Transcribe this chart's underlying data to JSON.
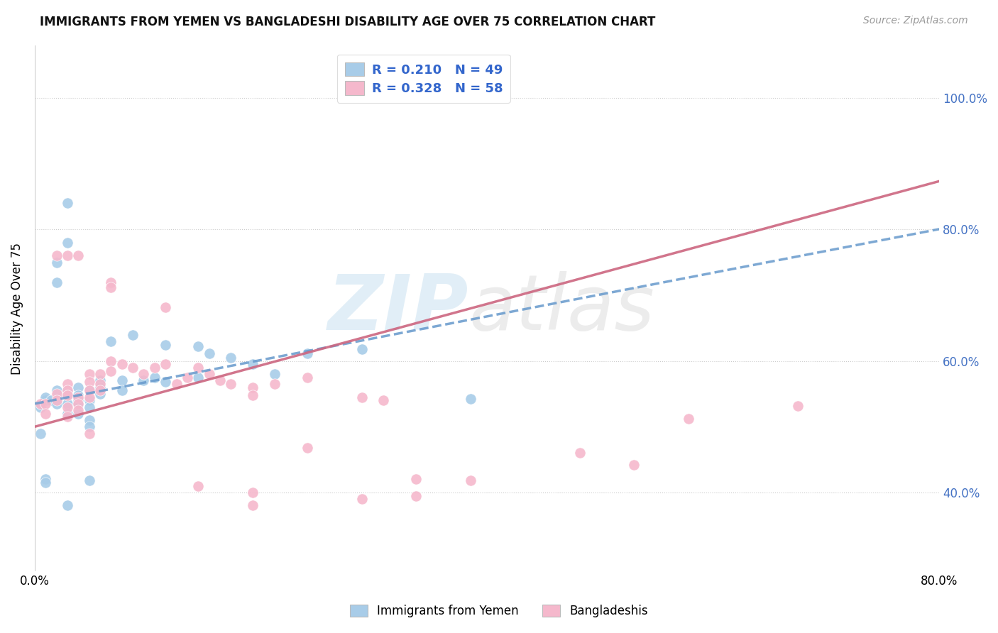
{
  "title": "IMMIGRANTS FROM YEMEN VS BANGLADESHI DISABILITY AGE OVER 75 CORRELATION CHART",
  "source": "Source: ZipAtlas.com",
  "ylabel": "Disability Age Over 75",
  "legend_label1": "Immigrants from Yemen",
  "legend_label2": "Bangladeshis",
  "r1": "0.210",
  "n1": "49",
  "r2": "0.328",
  "n2": "58",
  "blue_scatter_color": "#a8cce8",
  "pink_scatter_color": "#f5b8cc",
  "blue_line_color": "#6699cc",
  "pink_line_color": "#cc6680",
  "xlim": [
    0.0,
    0.083
  ],
  "ylim": [
    0.28,
    1.08
  ],
  "ytick_positions": [
    0.4,
    0.6,
    0.8,
    1.0
  ],
  "ytick_labels_right": [
    "40.0%",
    "60.0%",
    "80.0%",
    "100.0%"
  ],
  "blue_x": [
    0.0005,
    0.0005,
    0.001,
    0.001,
    0.001,
    0.0015,
    0.002,
    0.002,
    0.002,
    0.003,
    0.003,
    0.003,
    0.003,
    0.003,
    0.004,
    0.004,
    0.004,
    0.004,
    0.004,
    0.005,
    0.005,
    0.005,
    0.005,
    0.005,
    0.006,
    0.006,
    0.006,
    0.007,
    0.008,
    0.008,
    0.009,
    0.01,
    0.011,
    0.012,
    0.012,
    0.015,
    0.015,
    0.016,
    0.018,
    0.02,
    0.022,
    0.025,
    0.03,
    0.04,
    0.002,
    0.003,
    0.003,
    0.001,
    0.005
  ],
  "blue_y": [
    0.53,
    0.49,
    0.54,
    0.545,
    0.42,
    0.54,
    0.555,
    0.535,
    0.72,
    0.555,
    0.548,
    0.535,
    0.52,
    0.78,
    0.56,
    0.548,
    0.54,
    0.535,
    0.52,
    0.555,
    0.54,
    0.53,
    0.51,
    0.5,
    0.57,
    0.56,
    0.55,
    0.63,
    0.57,
    0.555,
    0.64,
    0.57,
    0.575,
    0.625,
    0.568,
    0.622,
    0.575,
    0.612,
    0.605,
    0.595,
    0.58,
    0.612,
    0.618,
    0.542,
    0.75,
    0.38,
    0.84,
    0.415,
    0.418
  ],
  "pink_x": [
    0.0005,
    0.001,
    0.001,
    0.002,
    0.002,
    0.003,
    0.003,
    0.003,
    0.003,
    0.003,
    0.004,
    0.004,
    0.004,
    0.005,
    0.005,
    0.005,
    0.005,
    0.005,
    0.006,
    0.006,
    0.006,
    0.007,
    0.007,
    0.008,
    0.009,
    0.01,
    0.011,
    0.012,
    0.013,
    0.014,
    0.015,
    0.016,
    0.017,
    0.018,
    0.02,
    0.022,
    0.025,
    0.03,
    0.032,
    0.035,
    0.04,
    0.003,
    0.004,
    0.007,
    0.007,
    0.012,
    0.02,
    0.025,
    0.015,
    0.02,
    0.02,
    0.03,
    0.035,
    0.06,
    0.07,
    0.002,
    0.05,
    0.055
  ],
  "pink_y": [
    0.535,
    0.535,
    0.52,
    0.55,
    0.54,
    0.565,
    0.555,
    0.548,
    0.53,
    0.515,
    0.545,
    0.535,
    0.525,
    0.58,
    0.568,
    0.555,
    0.545,
    0.49,
    0.58,
    0.565,
    0.555,
    0.6,
    0.585,
    0.595,
    0.59,
    0.58,
    0.59,
    0.595,
    0.565,
    0.575,
    0.59,
    0.58,
    0.57,
    0.565,
    0.56,
    0.565,
    0.575,
    0.545,
    0.54,
    0.42,
    0.418,
    0.76,
    0.76,
    0.72,
    0.712,
    0.682,
    0.548,
    0.468,
    0.41,
    0.4,
    0.38,
    0.39,
    0.395,
    0.512,
    0.532,
    0.76,
    0.46,
    0.442
  ],
  "blue_trendline_slope": 3.2,
  "blue_trendline_intercept": 0.535,
  "pink_trendline_slope": 4.5,
  "pink_trendline_intercept": 0.5
}
